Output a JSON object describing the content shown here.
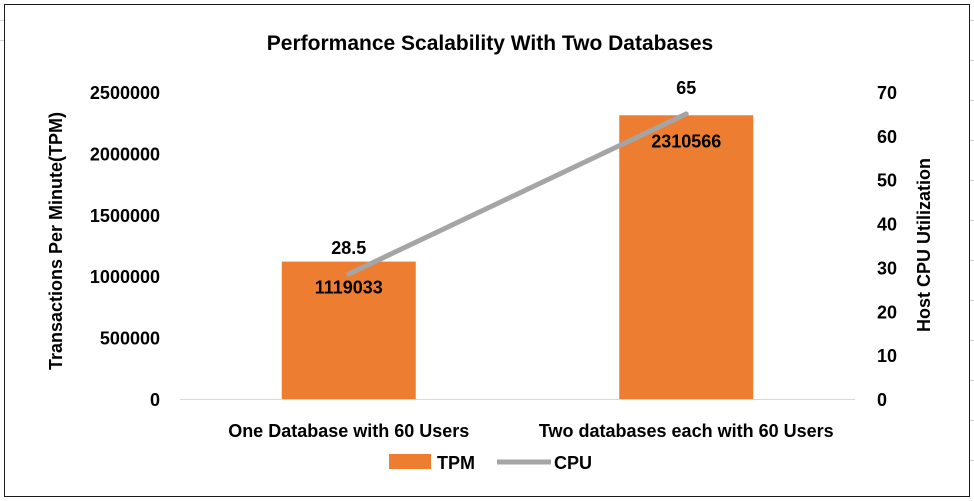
{
  "chart_data": {
    "type": "bar",
    "title": "Performance Scalability With Two Databases",
    "categories": [
      "One Database with 60 Users",
      "Two databases each with 60 Users"
    ],
    "series": [
      {
        "name": "TPM",
        "type": "bar",
        "axis": "left",
        "color": "#ed7d31",
        "values": [
          1119033,
          2310566
        ]
      },
      {
        "name": "CPU",
        "type": "line",
        "axis": "right",
        "color": "#a5a5a5",
        "values": [
          28.5,
          65
        ]
      }
    ],
    "ylabel": "Transactions Per Minute(TPM)",
    "y2label": "Host CPU Utilization",
    "ylim": [
      0,
      2500000
    ],
    "y2lim": [
      0,
      70
    ],
    "yticks": [
      "0",
      "500000",
      "1000000",
      "1500000",
      "2000000",
      "2500000"
    ],
    "y2ticks": [
      "0",
      "10",
      "20",
      "30",
      "40",
      "50",
      "60",
      "70"
    ],
    "bar_labels": [
      "1119033",
      "2310566"
    ],
    "line_labels": [
      "28.5",
      "65"
    ],
    "legend": {
      "position": "bottom",
      "items": [
        "TPM",
        "CPU"
      ]
    },
    "grid": false
  }
}
